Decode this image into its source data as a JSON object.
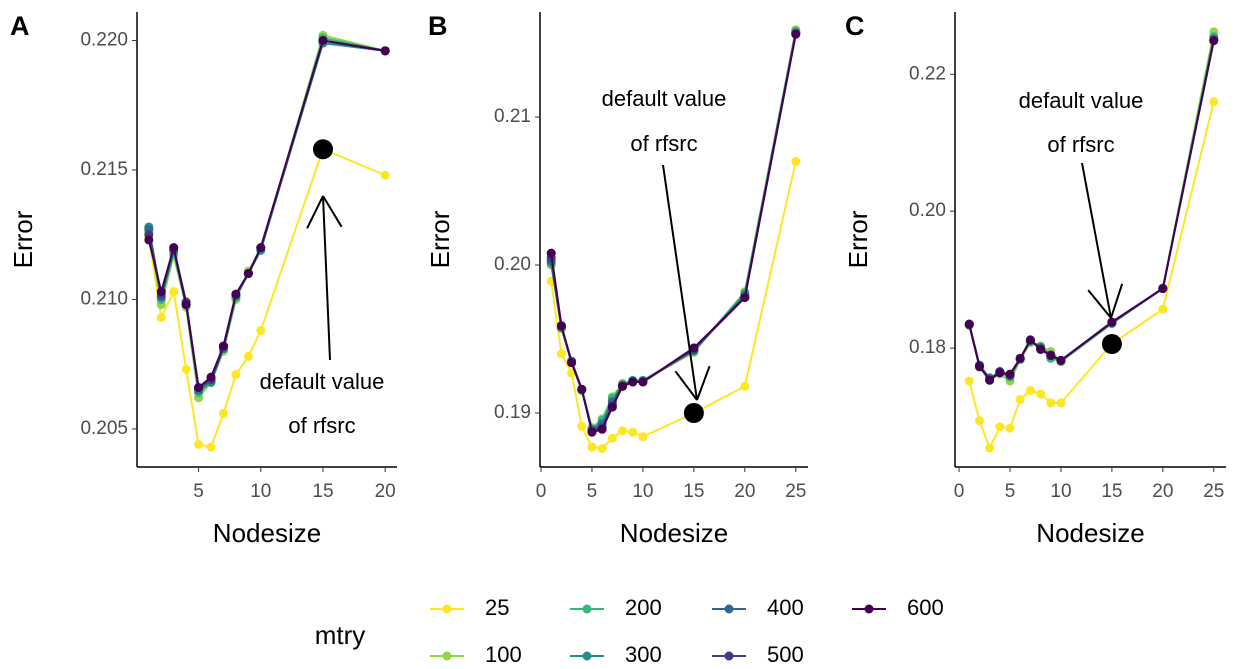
{
  "chart_data": [
    {
      "type": "line",
      "panel_label": "A",
      "x_label": "Nodesize",
      "y_label": "Error",
      "annotation": [
        "default value",
        "of rfsrc"
      ],
      "highlight": {
        "series": 0,
        "x": 15
      },
      "x": [
        1,
        2,
        3,
        4,
        5,
        6,
        7,
        8,
        9,
        10,
        15,
        20
      ],
      "xlim": [
        0.05,
        20.95
      ],
      "xticks": [
        5,
        10,
        15,
        20
      ],
      "ylim": [
        0.20353,
        0.2211
      ],
      "yticks": [
        0.205,
        {
          "value": 0.21,
          "label": "0.210"
        },
        0.215,
        {
          "value": 0.22,
          "label": "0.220"
        }
      ],
      "series": [
        {
          "name": "25",
          "color": "#FDE725",
          "values": [
            0.2124,
            0.2093,
            0.2103,
            0.2073,
            0.2044,
            0.2043,
            0.2056,
            0.2071,
            0.2078,
            0.2088,
            0.2158,
            0.2148
          ]
        },
        {
          "name": "100",
          "color": "#8FD744",
          "values": [
            0.2126,
            0.2098,
            0.2117,
            0.2097,
            0.2062,
            0.2068,
            0.208,
            0.21,
            0.2111,
            0.2119,
            0.2202,
            0.2196
          ]
        },
        {
          "name": "200",
          "color": "#35B779",
          "values": [
            0.2127,
            0.21,
            0.2118,
            0.2098,
            0.2064,
            0.2068,
            0.2081,
            0.2101,
            0.211,
            0.2119,
            0.2201,
            0.2196
          ]
        },
        {
          "name": "300",
          "color": "#21908C",
          "values": [
            0.2128,
            0.2101,
            0.2119,
            0.2098,
            0.2065,
            0.2068,
            0.2081,
            0.2101,
            0.211,
            0.2119,
            0.2199,
            0.2196
          ]
        },
        {
          "name": "400",
          "color": "#31688E",
          "values": [
            0.2127,
            0.2101,
            0.2119,
            0.2099,
            0.2065,
            0.2069,
            0.2081,
            0.2102,
            0.211,
            0.212,
            0.22,
            0.2196
          ]
        },
        {
          "name": "500",
          "color": "#443A83",
          "values": [
            0.2125,
            0.2102,
            0.212,
            0.2099,
            0.2066,
            0.2069,
            0.2082,
            0.2102,
            0.211,
            0.212,
            0.22,
            0.2196
          ]
        },
        {
          "name": "600",
          "color": "#440154",
          "values": [
            0.2123,
            0.2103,
            0.212,
            0.2098,
            0.2066,
            0.207,
            0.2082,
            0.2102,
            0.211,
            0.212,
            0.22,
            0.2196
          ]
        }
      ]
    },
    {
      "type": "line",
      "panel_label": "B",
      "x_label": "Nodesize",
      "y_label": "Error",
      "annotation": [
        "default value",
        "of rfsrc"
      ],
      "highlight": {
        "series": 0,
        "x": 15
      },
      "x": [
        1,
        2,
        3,
        4,
        5,
        6,
        7,
        8,
        9,
        10,
        15,
        20,
        25
      ],
      "xlim": [
        -0.1,
        26.2
      ],
      "xticks": [
        0,
        5,
        10,
        15,
        20,
        25
      ],
      "ylim": [
        0.18635,
        0.2171
      ],
      "yticks": [
        0.19,
        {
          "value": 0.2,
          "label": "0.20"
        },
        0.21
      ],
      "series": [
        {
          "name": "25",
          "color": "#FDE725",
          "values": [
            0.1989,
            0.194,
            0.1927,
            0.1891,
            0.1877,
            0.1876,
            0.1883,
            0.1888,
            0.1887,
            0.1884,
            0.19,
            0.1918,
            0.207
          ]
        },
        {
          "name": "100",
          "color": "#8FD744",
          "values": [
            0.2,
            0.1957,
            0.1934,
            0.1915,
            0.189,
            0.1896,
            0.1911,
            0.192,
            0.1922,
            0.1922,
            0.1941,
            0.1982,
            0.2159
          ]
        },
        {
          "name": "200",
          "color": "#35B779",
          "values": [
            0.2001,
            0.1958,
            0.1935,
            0.1916,
            0.1889,
            0.1895,
            0.191,
            0.1919,
            0.1922,
            0.1922,
            0.1942,
            0.1981,
            0.2158
          ]
        },
        {
          "name": "300",
          "color": "#21908C",
          "values": [
            0.2002,
            0.1958,
            0.1935,
            0.1916,
            0.1889,
            0.1893,
            0.1908,
            0.1919,
            0.1922,
            0.1922,
            0.1942,
            0.198,
            0.2157
          ]
        },
        {
          "name": "400",
          "color": "#31688E",
          "values": [
            0.2003,
            0.1958,
            0.1935,
            0.1916,
            0.1888,
            0.1892,
            0.1907,
            0.1919,
            0.1921,
            0.1921,
            0.1943,
            0.1979,
            0.2157
          ]
        },
        {
          "name": "500",
          "color": "#443A83",
          "values": [
            0.2005,
            0.1959,
            0.1934,
            0.1916,
            0.1888,
            0.189,
            0.1905,
            0.1918,
            0.1921,
            0.1921,
            0.1943,
            0.1978,
            0.2156
          ]
        },
        {
          "name": "600",
          "color": "#440154",
          "values": [
            0.2008,
            0.1959,
            0.1934,
            0.1916,
            0.1887,
            0.1889,
            0.1904,
            0.1918,
            0.1921,
            0.1921,
            0.1944,
            0.1978,
            0.2156
          ]
        }
      ]
    },
    {
      "type": "line",
      "panel_label": "C",
      "x_label": "Nodesize",
      "y_label": "Error",
      "annotation": [
        "default value",
        "of rfsrc"
      ],
      "highlight": {
        "series": 0,
        "x": 15
      },
      "x": [
        1,
        2,
        3,
        4,
        5,
        6,
        7,
        8,
        9,
        10,
        15,
        20,
        25
      ],
      "xlim": [
        -0.4,
        26.2
      ],
      "xticks": [
        0,
        5,
        10,
        15,
        20,
        25
      ],
      "ylim": [
        0.16263,
        0.2291
      ],
      "yticks": [
        0.18,
        {
          "value": 0.2,
          "label": "0.20"
        },
        0.22
      ],
      "series": [
        {
          "name": "25",
          "color": "#FDE725",
          "values": [
            0.1752,
            0.1694,
            0.1654,
            0.1685,
            0.1683,
            0.1725,
            0.1738,
            0.1733,
            0.172,
            0.172,
            0.1806,
            0.1857,
            0.216
          ]
        },
        {
          "name": "100",
          "color": "#8FD744",
          "values": [
            0.1833,
            0.1772,
            0.1757,
            0.1762,
            0.1752,
            0.1783,
            0.1808,
            0.1803,
            0.1795,
            0.178,
            0.1836,
            0.1888,
            0.2262
          ]
        },
        {
          "name": "200",
          "color": "#35B779",
          "values": [
            0.1834,
            0.1774,
            0.1756,
            0.1764,
            0.1758,
            0.1784,
            0.181,
            0.1802,
            0.1785,
            0.1781,
            0.1836,
            0.1887,
            0.2255
          ]
        },
        {
          "name": "300",
          "color": "#21908C",
          "values": [
            0.1834,
            0.1775,
            0.1756,
            0.1765,
            0.1759,
            0.1784,
            0.1811,
            0.1801,
            0.179,
            0.1782,
            0.1837,
            0.1887,
            0.2252
          ]
        },
        {
          "name": "400",
          "color": "#31688E",
          "values": [
            0.1835,
            0.1775,
            0.1755,
            0.1766,
            0.176,
            0.1785,
            0.1811,
            0.18,
            0.179,
            0.1782,
            0.1837,
            0.1887,
            0.225
          ]
        },
        {
          "name": "500",
          "color": "#443A83",
          "values": [
            0.1835,
            0.1774,
            0.1754,
            0.1765,
            0.1761,
            0.1785,
            0.1812,
            0.1799,
            0.179,
            0.1782,
            0.1838,
            0.1887,
            0.225
          ]
        },
        {
          "name": "600",
          "color": "#440154",
          "values": [
            0.1835,
            0.1773,
            0.1753,
            0.1764,
            0.1762,
            0.1785,
            0.1812,
            0.1798,
            0.1789,
            0.1782,
            0.1838,
            0.1887,
            0.2249
          ]
        }
      ]
    }
  ],
  "legend_title": "mtry"
}
